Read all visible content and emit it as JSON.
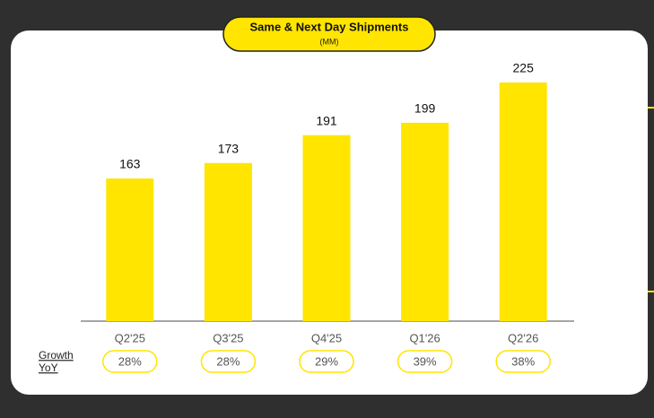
{
  "chart_data": {
    "type": "bar",
    "title": "Same & Next Day Shipments",
    "subtitle": "(MM)",
    "categories": [
      "Q2'25",
      "Q3'25",
      "Q4'25",
      "Q1'26",
      "Q2'26"
    ],
    "values": [
      163,
      173,
      191,
      199,
      225
    ],
    "color": "#ffe500",
    "growth_label": [
      "Growth",
      "YoY"
    ],
    "growth": {
      "values": [
        28,
        28,
        29,
        39,
        38
      ],
      "value_labels": [
        "28%",
        "28%",
        "29%",
        "39%",
        "38%"
      ]
    }
  }
}
